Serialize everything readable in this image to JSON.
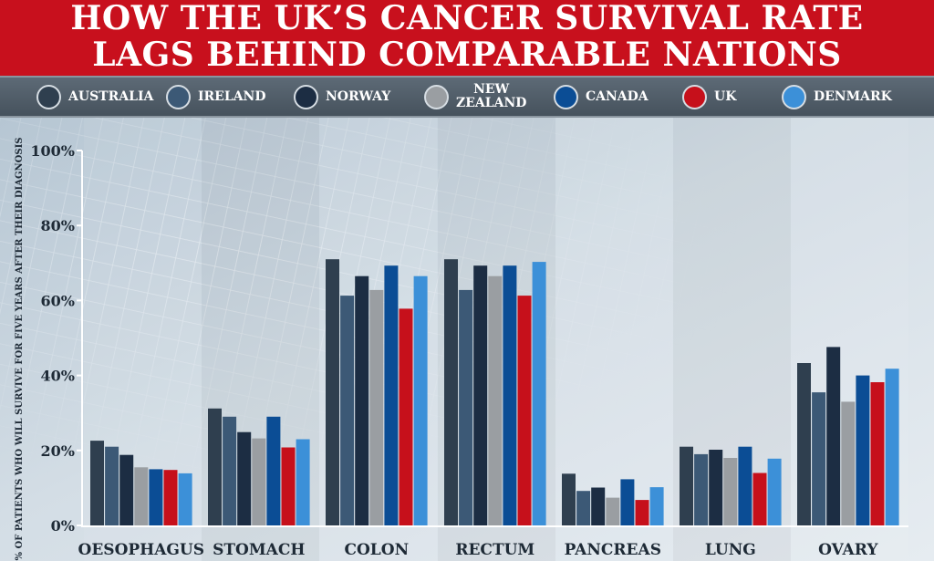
{
  "header": {
    "title_line1": "HOW THE UK’S CANCER SURVIVAL RATE",
    "title_line2": "LAGS BEHIND COMPARABLE NATIONS"
  },
  "legend": [
    {
      "line1": "AUSTRALIA",
      "line2": "",
      "color": "#2f3f4f"
    },
    {
      "line1": "IRELAND",
      "line2": "",
      "color": "#3c5976"
    },
    {
      "line1": "NORWAY",
      "line2": "",
      "color": "#1c2d43"
    },
    {
      "line1": "NEW",
      "line2": "ZEALAND",
      "color": "#9a9ea2"
    },
    {
      "line1": "CANADA",
      "line2": "",
      "color": "#0b4d95"
    },
    {
      "line1": "UK",
      "line2": "",
      "color": "#c6101b"
    },
    {
      "line1": "DENMARK",
      "line2": "",
      "color": "#3c90d8"
    }
  ],
  "chart_data": {
    "type": "bar",
    "title": "HOW THE UK’S CANCER SURVIVAL RATE LAGS BEHIND COMPARABLE NATIONS",
    "ylabel": "% OF PATIENTS WHO WILL SURVIVE FOR FIVE YEARS AFTER THEIR DIAGNOSIS",
    "xlabel": "",
    "ylim": [
      0,
      100
    ],
    "yticks": [
      "0%",
      "20%",
      "40%",
      "60%",
      "80%",
      "100%"
    ],
    "grid": false,
    "legend_position": "top",
    "categories": [
      "OESOPHAGUS",
      "STOMACH",
      "COLON",
      "RECTUM",
      "PANCREAS",
      "LUNG",
      "OVARY"
    ],
    "series": [
      {
        "name": "AUSTRALIA",
        "color": "#2f3f4f",
        "values": [
          22.6,
          31.2,
          71.0,
          71.0,
          13.8,
          21.0,
          43.3
        ]
      },
      {
        "name": "IRELAND",
        "color": "#3c5976",
        "values": [
          21.0,
          29.0,
          61.3,
          62.8,
          9.2,
          19.0,
          35.5
        ]
      },
      {
        "name": "NORWAY",
        "color": "#1c2d43",
        "values": [
          18.8,
          24.9,
          66.5,
          69.3,
          10.1,
          20.2,
          47.6
        ]
      },
      {
        "name": "NEW ZEALAND",
        "color": "#9a9ea2",
        "values": [
          15.5,
          23.2,
          62.8,
          66.5,
          7.4,
          18.0,
          33.0
        ]
      },
      {
        "name": "CANADA",
        "color": "#0b4d95",
        "values": [
          15.0,
          29.0,
          69.3,
          69.3,
          12.3,
          21.0,
          40.0
        ]
      },
      {
        "name": "UK",
        "color": "#c6101b",
        "values": [
          14.8,
          20.8,
          57.8,
          61.3,
          6.8,
          14.0,
          38.2
        ]
      },
      {
        "name": "DENMARK",
        "color": "#3c90d8",
        "values": [
          13.9,
          23.0,
          66.5,
          70.3,
          10.2,
          17.8,
          41.8
        ]
      }
    ]
  }
}
